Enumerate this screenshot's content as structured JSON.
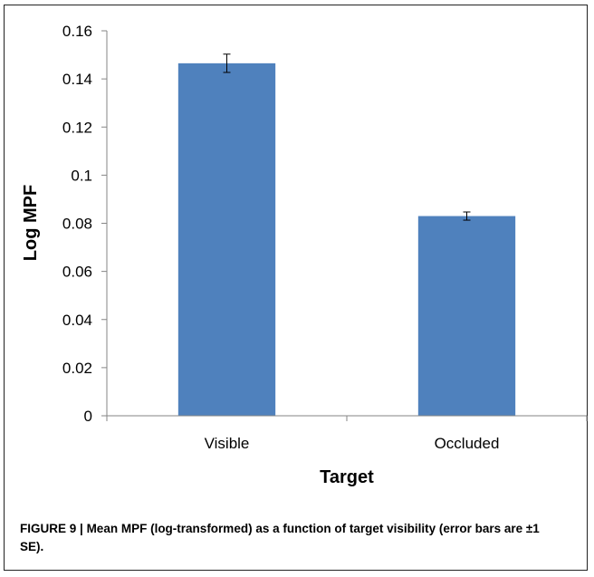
{
  "chart_data": {
    "type": "bar",
    "categories": [
      "Visible",
      "Occluded"
    ],
    "values": [
      0.1465,
      0.083
    ],
    "errors": [
      0.0038,
      0.0017
    ],
    "xlabel": "Target",
    "ylabel": "Log MPF",
    "ylim": [
      0,
      0.16
    ],
    "yticks": [
      "0",
      "0.02",
      "0.04",
      "0.06",
      "0.08",
      "0.1",
      "0.12",
      "0.14",
      "0.16"
    ],
    "grid": false,
    "legend": "none",
    "bar_color": "#4F81BD"
  },
  "caption": {
    "label": "FIGURE 9 |",
    "text": "Mean MPF (log-transformed) as a function of target visibility (error bars are ±1 SE)."
  }
}
